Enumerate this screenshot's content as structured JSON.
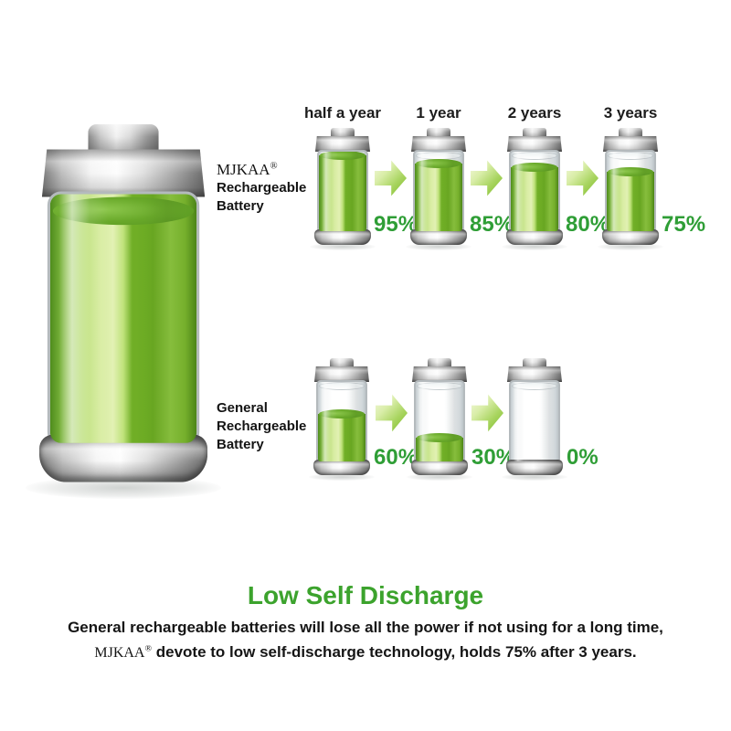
{
  "colors": {
    "percent_green": "#2f9e36",
    "title_green": "#3ca32d",
    "battery_green": "#8cc63f",
    "metal_gray": "#c2c2c2"
  },
  "hero": {
    "level": 100
  },
  "rows": [
    {
      "brand": "MJKAA",
      "reg": "®",
      "label_lines": [
        "Rechargeable",
        "Battery"
      ],
      "time_labels": [
        "half a year",
        "1 year",
        "2 years",
        "3 years"
      ],
      "batteries": [
        {
          "percent": "95%",
          "level": 95
        },
        {
          "percent": "85%",
          "level": 85
        },
        {
          "percent": "80%",
          "level": 80
        },
        {
          "percent": "75%",
          "level": 75
        }
      ]
    },
    {
      "label_lines": [
        "General",
        "Rechargeable",
        "Battery"
      ],
      "batteries": [
        {
          "percent": "60%",
          "level": 60
        },
        {
          "percent": "30%",
          "level": 30
        },
        {
          "percent": "0%",
          "level": 0
        }
      ]
    }
  ],
  "footer": {
    "title": "Low Self Discharge",
    "line1": "General rechargeable batteries will lose all the power if not using for a long time,",
    "brand": "MJKAA",
    "reg": "®",
    "line2": "devote to low self-discharge technology, holds 75% after 3 years."
  }
}
